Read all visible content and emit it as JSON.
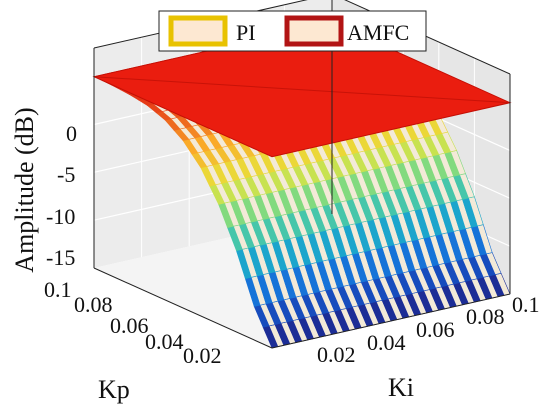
{
  "chart_data": {
    "type": "surface",
    "series": [
      {
        "name": "PI",
        "colormap": "parula",
        "style": "mesh"
      },
      {
        "name": "AMFC",
        "color": "#e8180c",
        "style": "flat-surface"
      }
    ],
    "zlabel": "Amplitude (dB)",
    "xlabel": "Kp",
    "ylabel": "Ki",
    "z_ticks": [
      "0",
      "-5",
      "-10",
      "-15"
    ],
    "kp_ticks": [
      "0.1",
      "0.08",
      "0.06",
      "0.04",
      "0.02"
    ],
    "ki_ticks": [
      "0.02",
      "0.04",
      "0.06",
      "0.08",
      "0.1"
    ],
    "zlim": [
      -20,
      3
    ],
    "kp_range": [
      0,
      0.1
    ],
    "ki_range": [
      0,
      0.1
    ],
    "grid": true,
    "legend_position": "top-center",
    "pi_profile": {
      "kp": [
        0.0,
        0.01,
        0.02,
        0.03,
        0.04,
        0.05,
        0.06,
        0.07,
        0.08,
        0.09,
        0.1
      ],
      "amplitude_db": [
        -20,
        -16.5,
        -11.5,
        -7.5,
        -4.5,
        -2.5,
        -1.2,
        -0.5,
        -0.2,
        -0.05,
        0
      ]
    },
    "amfc_amplitude_db": 0
  }
}
